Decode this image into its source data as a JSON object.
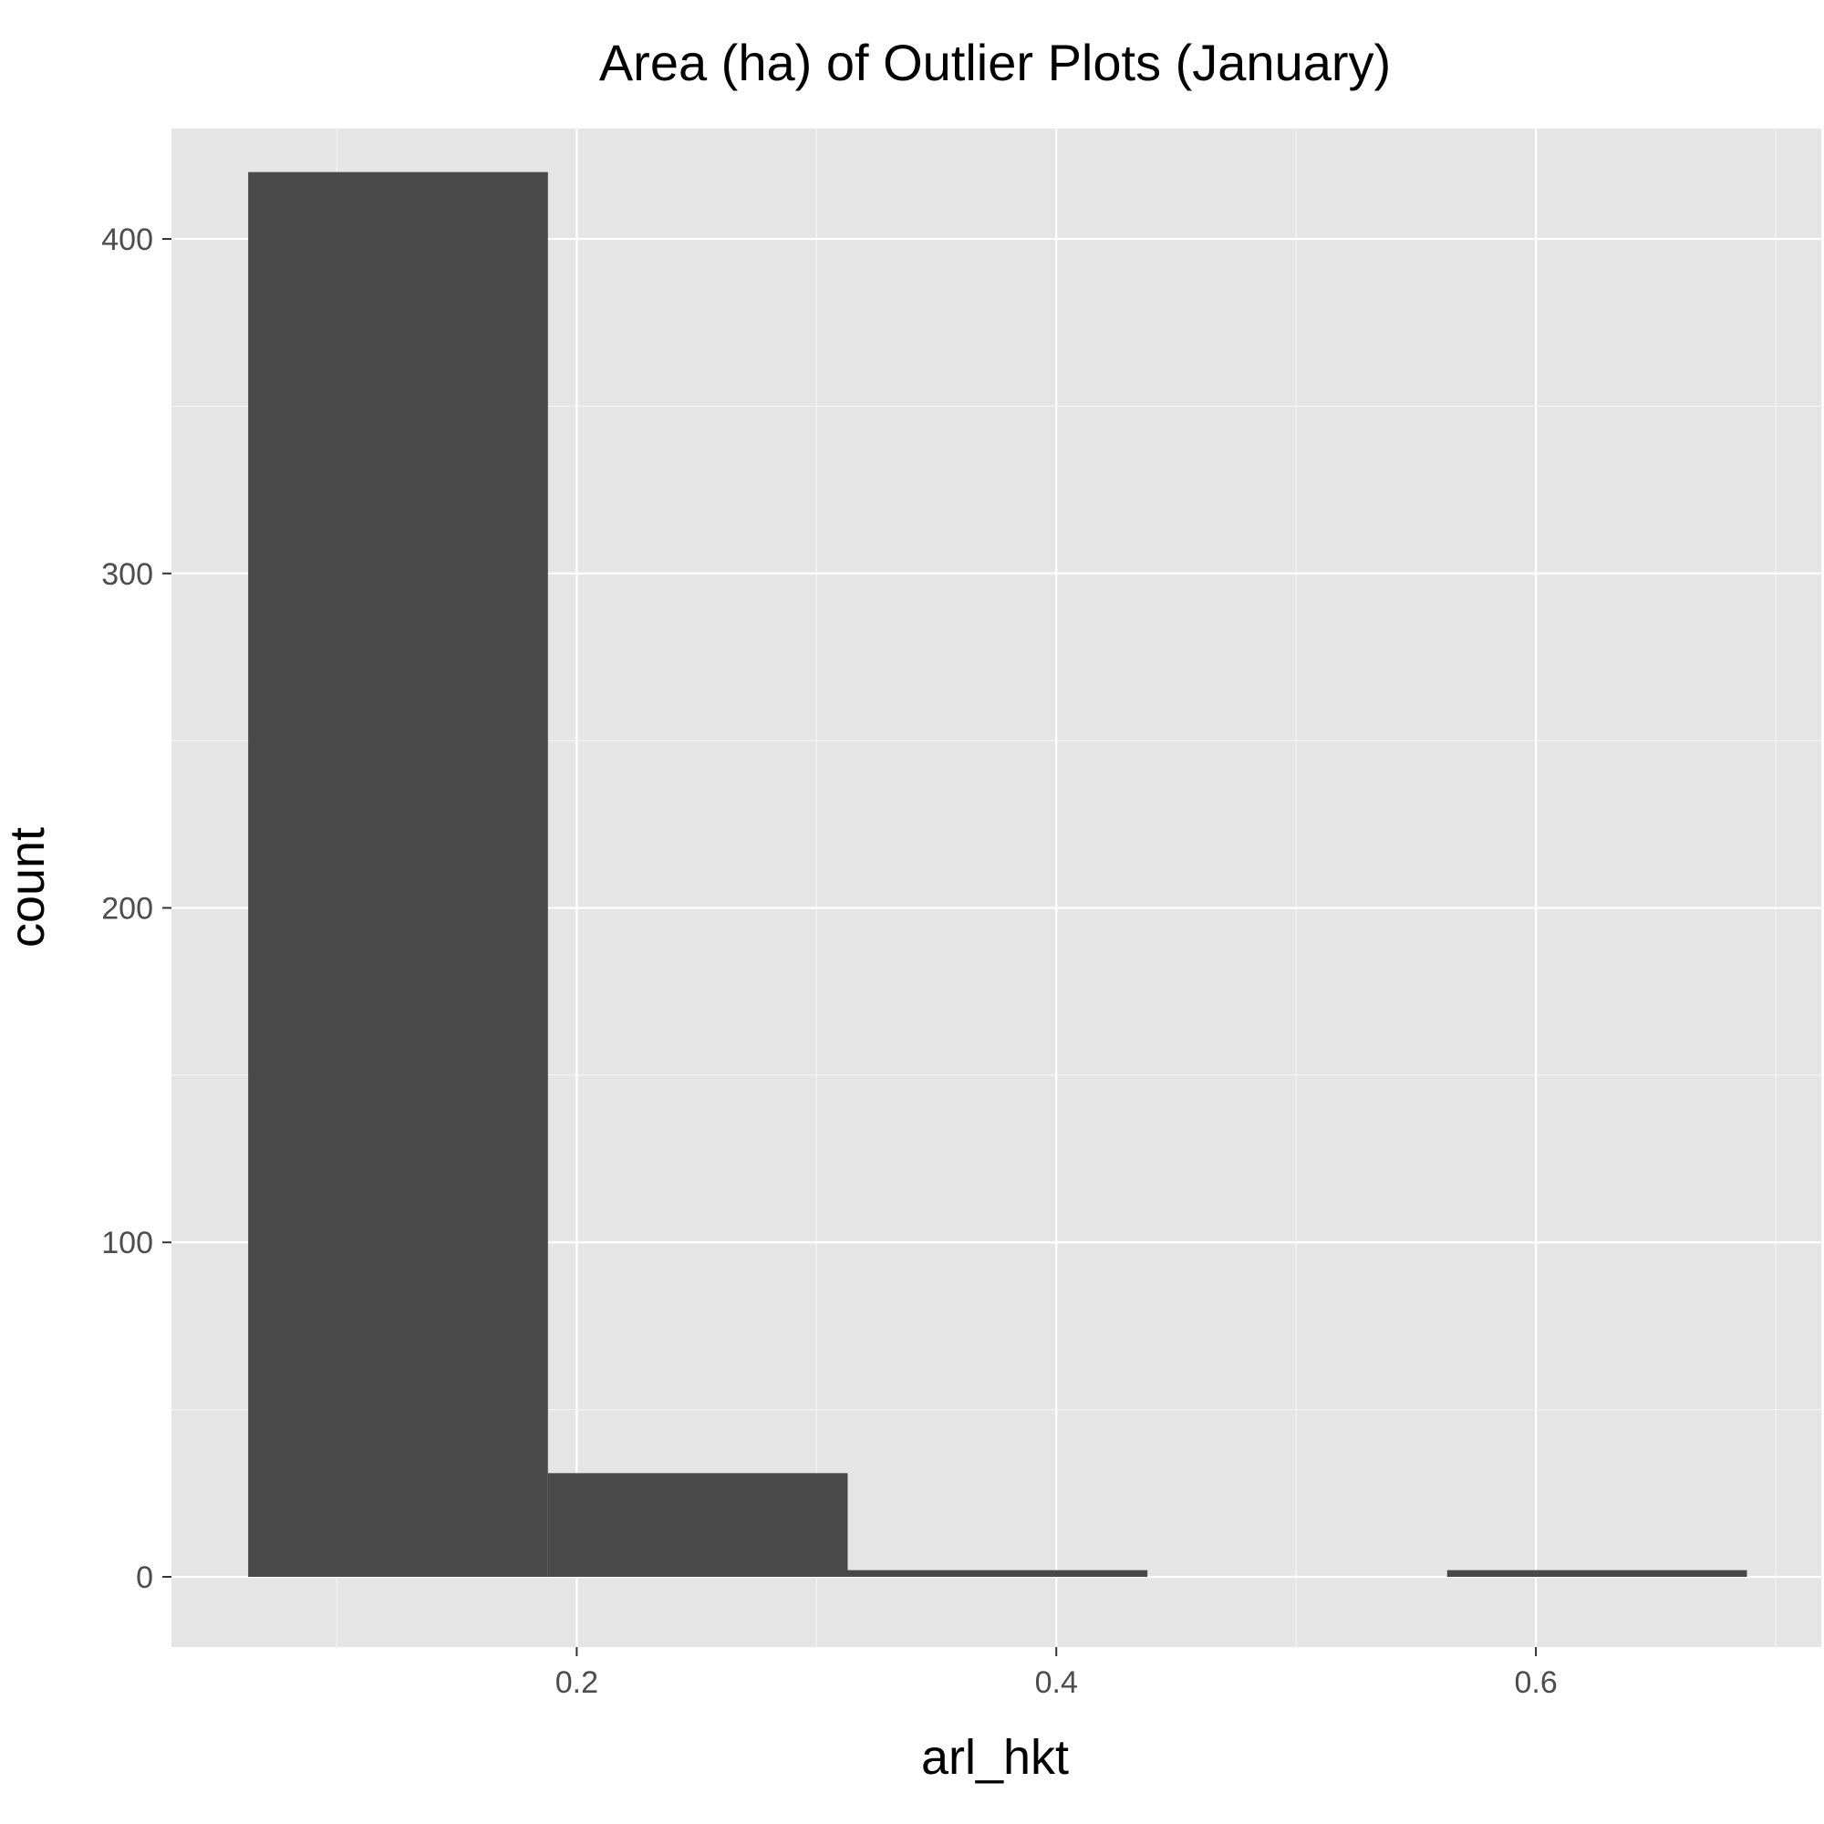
{
  "chart_data": {
    "type": "bar",
    "title": "Area (ha) of Outlier Plots (January)",
    "xlabel": "arl_hkt",
    "ylabel": "count",
    "bins": [
      {
        "x0": 0.063,
        "x1": 0.188,
        "count": 420
      },
      {
        "x0": 0.188,
        "x1": 0.313,
        "count": 31
      },
      {
        "x0": 0.313,
        "x1": 0.438,
        "count": 2
      },
      {
        "x0": 0.438,
        "x1": 0.563,
        "count": 0
      },
      {
        "x0": 0.563,
        "x1": 0.688,
        "count": 2
      }
    ],
    "xlim": [
      0.031,
      0.719
    ],
    "ylim": [
      -21,
      433
    ],
    "x_ticks": [
      0.2,
      0.4,
      0.6
    ],
    "x_tick_labels": [
      "0.2",
      "0.4",
      "0.6"
    ],
    "y_ticks": [
      0,
      100,
      200,
      300,
      400
    ],
    "y_tick_labels": [
      "0",
      "100",
      "200",
      "300",
      "400"
    ],
    "grid": true,
    "colors": {
      "panel": "#e5e5e5",
      "grid": "#ffffff",
      "bar": "#494949",
      "tick": "#333333"
    }
  }
}
